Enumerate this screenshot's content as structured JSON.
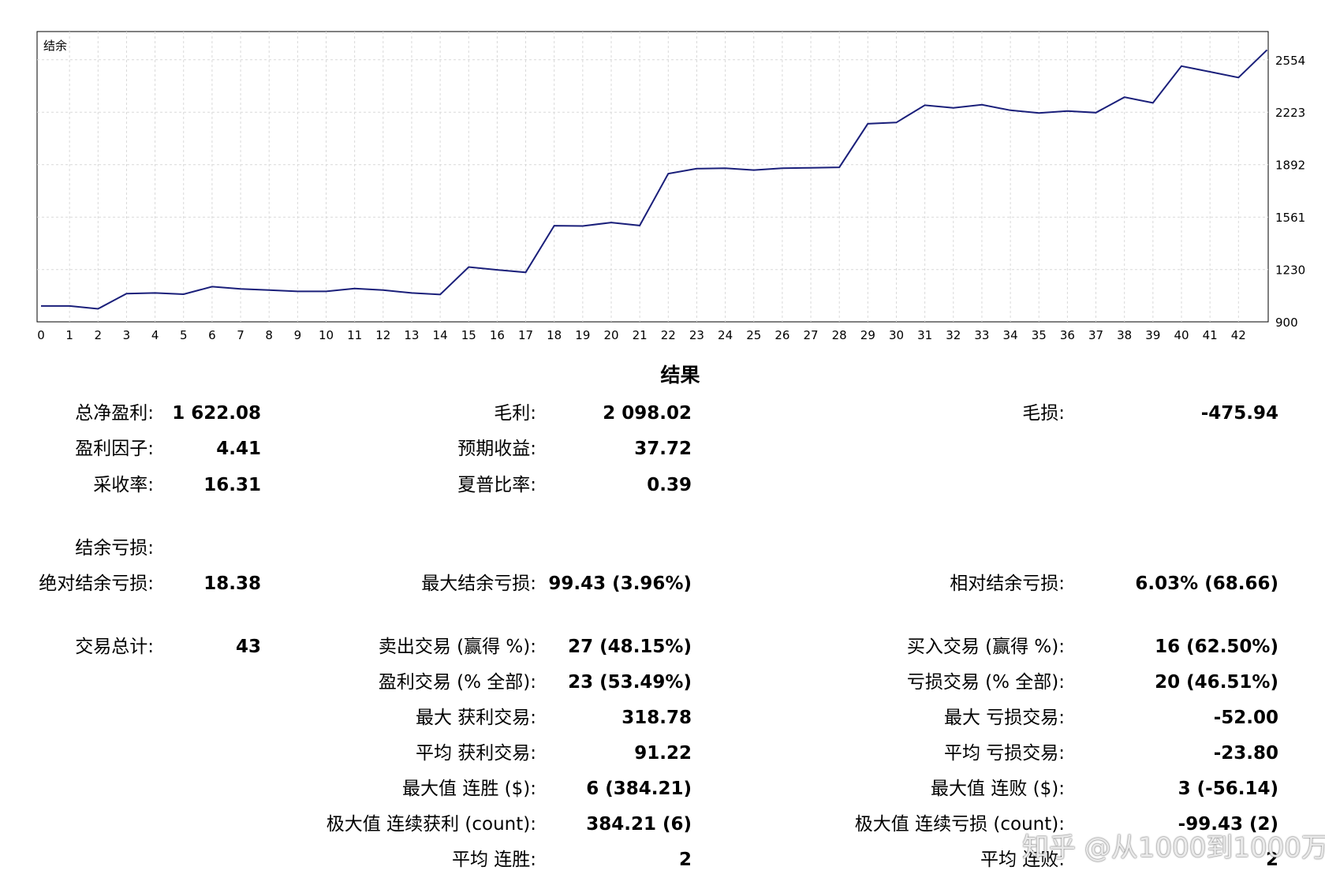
{
  "chart_data": {
    "type": "line",
    "title": "结余",
    "x": [
      0,
      1,
      2,
      3,
      4,
      5,
      6,
      7,
      8,
      9,
      10,
      11,
      12,
      13,
      14,
      15,
      16,
      17,
      18,
      19,
      20,
      21,
      22,
      23,
      24,
      25,
      26,
      27,
      28,
      29,
      30,
      31,
      32,
      33,
      34,
      35,
      36,
      37,
      38,
      39,
      40,
      41,
      42,
      43
    ],
    "x_tick_labels": [
      "0",
      "1",
      "2",
      "3",
      "4",
      "5",
      "6",
      "7",
      "8",
      "9",
      "10",
      "11",
      "12",
      "13",
      "14",
      "15",
      "16",
      "17",
      "18",
      "19",
      "20",
      "21",
      "22",
      "23",
      "24",
      "25",
      "26",
      "27",
      "28",
      "29",
      "30",
      "31",
      "32",
      "33",
      "34",
      "35",
      "36",
      "37",
      "38",
      "39",
      "40",
      "41",
      "42"
    ],
    "series": [
      {
        "values": [
          1000,
          1000,
          982,
          1078,
          1082,
          1074,
          1122,
          1108,
          1100,
          1092,
          1092,
          1110,
          1100,
          1082,
          1072,
          1246,
          1228,
          1212,
          1507,
          1505,
          1527,
          1508,
          1835,
          1867,
          1870,
          1858,
          1870,
          1872,
          1875,
          2150,
          2158,
          2267,
          2250,
          2270,
          2235,
          2218,
          2230,
          2220,
          2318,
          2282,
          2514,
          2478,
          2442,
          2616
        ],
        "color": "#1a1f7a"
      }
    ],
    "y_ticks": [
      900,
      1230,
      1561,
      1892,
      2223,
      2554
    ],
    "ylim": [
      900,
      2732
    ],
    "grid": true,
    "y_axis_side": "right"
  },
  "results": {
    "title": "结果",
    "col1": [
      {
        "label": "总净盈利:",
        "value": "1 622.08"
      },
      {
        "label": "盈利因子:",
        "value": "4.41"
      },
      {
        "label": "采收率:",
        "value": "16.31"
      },
      {
        "label": "结余亏损:",
        "value": ""
      },
      {
        "label": "绝对结余亏损:",
        "value": "18.38"
      },
      {
        "label": "交易总计:",
        "value": "43"
      }
    ],
    "col2": [
      {
        "label": "毛利:",
        "value": "2 098.02"
      },
      {
        "label": "预期收益:",
        "value": "37.72"
      },
      {
        "label": "夏普比率:",
        "value": "0.39"
      },
      {
        "label": "最大结余亏损:",
        "value": "99.43 (3.96%)"
      },
      {
        "label": "卖出交易 (赢得 %):",
        "value": "27 (48.15%)"
      },
      {
        "label": "盈利交易 (% 全部):",
        "value": "23 (53.49%)"
      },
      {
        "label": "最大 获利交易:",
        "value": "318.78"
      },
      {
        "label": "平均 获利交易:",
        "value": "91.22"
      },
      {
        "label": "最大值 连胜 ($):",
        "value": "6 (384.21)"
      },
      {
        "label": "极大值 连续获利 (count):",
        "value": "384.21 (6)"
      },
      {
        "label": "平均 连胜:",
        "value": "2"
      }
    ],
    "col3": [
      {
        "label": "毛损:",
        "value": "-475.94"
      },
      {
        "label": "相对结余亏损:",
        "value": "6.03% (68.66)"
      },
      {
        "label": "买入交易 (赢得 %):",
        "value": "16 (62.50%)"
      },
      {
        "label": "亏损交易 (% 全部):",
        "value": "20 (46.51%)"
      },
      {
        "label": "最大 亏损交易:",
        "value": "-52.00"
      },
      {
        "label": "平均 亏损交易:",
        "value": "-23.80"
      },
      {
        "label": "最大值 连败 ($):",
        "value": "3 (-56.14)"
      },
      {
        "label": "极大值 连续亏损 (count):",
        "value": "-99.43 (2)"
      },
      {
        "label": "平均 连败:",
        "value": "2"
      }
    ]
  },
  "watermark": "知乎 @从1000到1000万"
}
